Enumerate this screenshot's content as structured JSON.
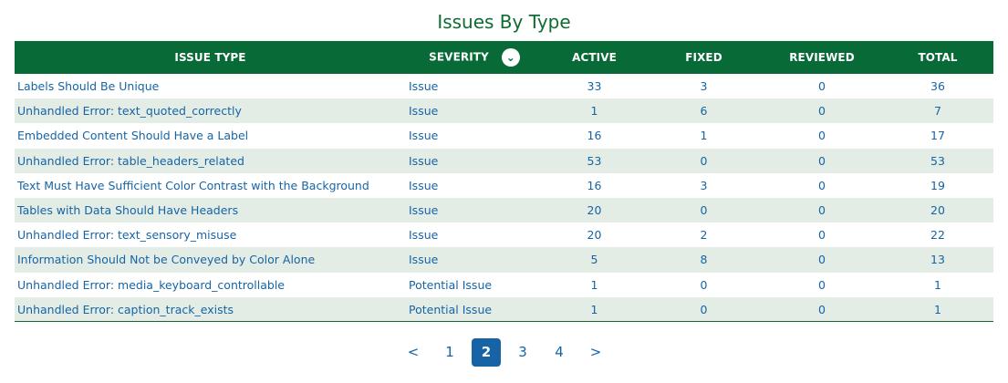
{
  "title": "Issues By Type",
  "table": {
    "headers": {
      "issue_type": "ISSUE TYPE",
      "severity": "SEVERITY",
      "active": "ACTIVE",
      "fixed": "FIXED",
      "reviewed": "REVIEWED",
      "total": "TOTAL"
    },
    "sort_icon": "chevron-down-icon",
    "rows": [
      {
        "issue_type": "Labels Should Be Unique",
        "severity": "Issue",
        "active": "33",
        "fixed": "3",
        "reviewed": "0",
        "total": "36"
      },
      {
        "issue_type": "Unhandled Error: text_quoted_correctly",
        "severity": "Issue",
        "active": "1",
        "fixed": "6",
        "reviewed": "0",
        "total": "7"
      },
      {
        "issue_type": "Embedded Content Should Have a Label",
        "severity": "Issue",
        "active": "16",
        "fixed": "1",
        "reviewed": "0",
        "total": "17"
      },
      {
        "issue_type": "Unhandled Error: table_headers_related",
        "severity": "Issue",
        "active": "53",
        "fixed": "0",
        "reviewed": "0",
        "total": "53"
      },
      {
        "issue_type": "Text Must Have Sufficient Color Contrast with the Background",
        "severity": "Issue",
        "active": "16",
        "fixed": "3",
        "reviewed": "0",
        "total": "19"
      },
      {
        "issue_type": "Tables with Data Should Have Headers",
        "severity": "Issue",
        "active": "20",
        "fixed": "0",
        "reviewed": "0",
        "total": "20"
      },
      {
        "issue_type": "Unhandled Error: text_sensory_misuse",
        "severity": "Issue",
        "active": "20",
        "fixed": "2",
        "reviewed": "0",
        "total": "22"
      },
      {
        "issue_type": "Information Should Not be Conveyed by Color Alone",
        "severity": "Issue",
        "active": "5",
        "fixed": "8",
        "reviewed": "0",
        "total": "13"
      },
      {
        "issue_type": "Unhandled Error: media_keyboard_controllable",
        "severity": "Potential Issue",
        "active": "1",
        "fixed": "0",
        "reviewed": "0",
        "total": "1"
      },
      {
        "issue_type": "Unhandled Error: caption_track_exists",
        "severity": "Potential Issue",
        "active": "1",
        "fixed": "0",
        "reviewed": "0",
        "total": "1"
      }
    ]
  },
  "pagination": {
    "prev": "<",
    "pages": [
      "1",
      "2",
      "3",
      "4"
    ],
    "current": "2",
    "next": ">"
  },
  "colors": {
    "brand_green": "#086b37",
    "link_blue": "#1664a6",
    "stripe": "#e3ede5"
  }
}
